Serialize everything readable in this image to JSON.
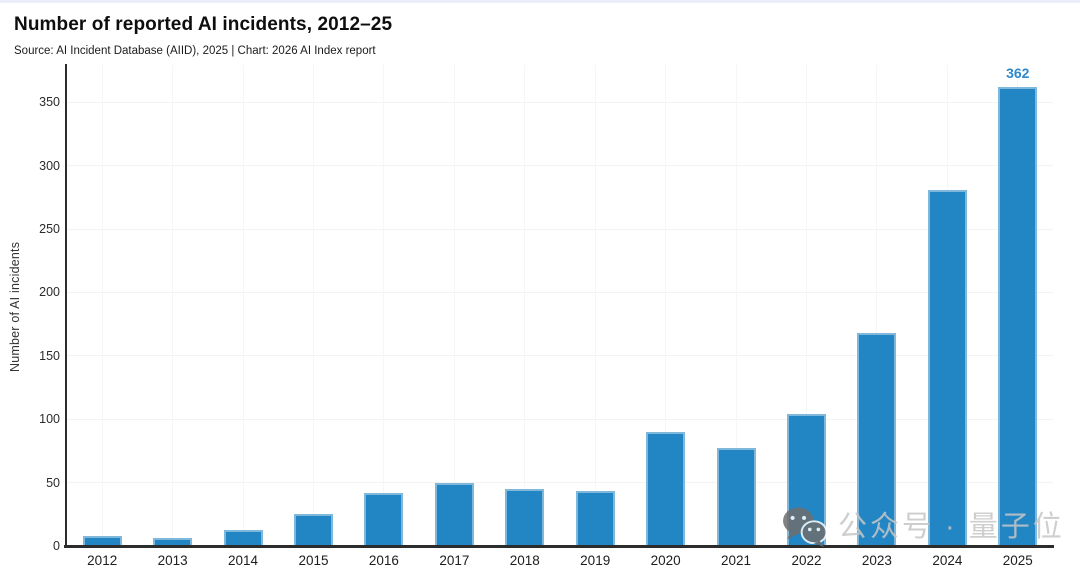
{
  "page": {
    "top_strip_color": "#e9eef8",
    "background": "#ffffff"
  },
  "header": {
    "title": "Number of reported AI incidents, 2012–25",
    "source_line": "Source: AI Incident Database (AIID), 2025 | Chart: 2026 AI Index report"
  },
  "chart_data": {
    "type": "bar",
    "title": "Number of reported AI incidents, 2012–25",
    "categories": [
      "2012",
      "2013",
      "2014",
      "2015",
      "2016",
      "2017",
      "2018",
      "2019",
      "2020",
      "2021",
      "2022",
      "2023",
      "2024",
      "2025"
    ],
    "values": [
      8,
      6,
      13,
      25,
      42,
      50,
      45,
      43,
      90,
      77,
      104,
      168,
      281,
      362
    ],
    "xlabel": "",
    "ylabel": "Number of AI incidents",
    "ylim": [
      0,
      380
    ],
    "yticks": [
      0,
      50,
      100,
      150,
      200,
      250,
      300,
      350
    ],
    "grid": true,
    "legend": "none",
    "bar_color": "#2386c4",
    "bar_edge_color": "#7fb8da",
    "axis_color": "#2c2c2c",
    "annotation": {
      "category": "2025",
      "text": "362",
      "color": "#2e89cb"
    }
  },
  "watermark": {
    "icon": "wechat-icon",
    "text": "公众号 · 量子位",
    "text_color": "#c6c6c6",
    "icon_color": "#6e6e6e"
  }
}
